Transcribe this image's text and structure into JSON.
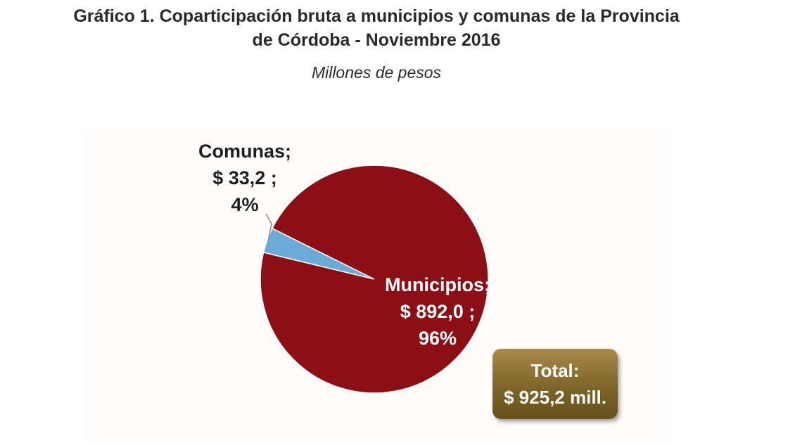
{
  "header": {
    "title_line1": "Gráfico 1. Coparticipación bruta a municipios y comunas de la Provincia",
    "title_line2": "de Córdoba - Noviembre 2016",
    "subtitle": "Millones de pesos"
  },
  "chart_data": {
    "type": "pie",
    "title": "Gráfico 1. Coparticipación bruta a municipios y comunas de la Provincia de Córdoba - Noviembre 2016",
    "subtitle": "Millones de pesos",
    "categories": [
      "Municipios",
      "Comunas"
    ],
    "values": [
      892.0,
      33.2
    ],
    "percent_labels": [
      "96%",
      "4%"
    ],
    "value_labels": [
      "$ 892,0 ;",
      "$ 33,2 ;"
    ],
    "name_labels": [
      "Municipios;",
      "Comunas;"
    ],
    "colors": [
      "#8b0f14",
      "#6aaad6"
    ],
    "total_line1": "Total:",
    "total_line2": "$ 925,2 mill."
  },
  "colors": {
    "municipios": "#8b0f14",
    "comunas": "#6aaad6",
    "total_box": "#7e6528"
  }
}
